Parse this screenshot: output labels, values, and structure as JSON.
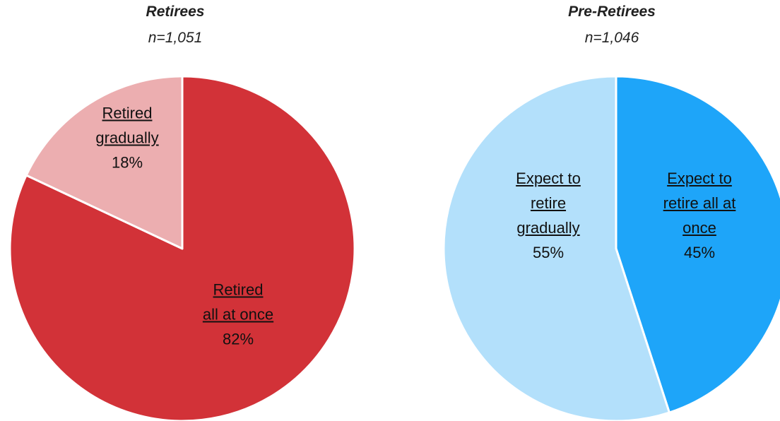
{
  "chart_data": [
    {
      "type": "pie",
      "title": "Retirees",
      "subtitle": "n=1,051",
      "categories": [
        "Retired\nall at once",
        "Retired\ngradually"
      ],
      "values": [
        82,
        18
      ],
      "value_labels": [
        "82%",
        "18%"
      ],
      "colors": [
        "#d23238",
        "#ecaeb0"
      ]
    },
    {
      "type": "pie",
      "title": "Pre-Retirees",
      "subtitle": "n=1,046",
      "categories": [
        "Expect to\nretire all at\nonce",
        "Expect to\nretire\ngradually"
      ],
      "values": [
        45,
        55
      ],
      "value_labels": [
        "45%",
        "55%"
      ],
      "colors": [
        "#1ea5f9",
        "#b3e0fb"
      ]
    }
  ]
}
